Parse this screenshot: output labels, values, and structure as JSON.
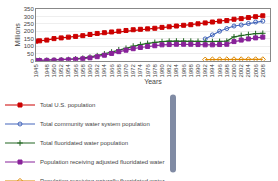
{
  "chart_data": {
    "type": "line",
    "xlabel": "Years",
    "ylabel": "Millions",
    "x": [
      1945,
      1946,
      1948,
      1950,
      1952,
      1954,
      1956,
      1958,
      1960,
      1962,
      1964,
      1966,
      1968,
      1970,
      1972,
      1974,
      1976,
      1978,
      1980,
      1982,
      1984,
      1986,
      1988,
      1990,
      1992,
      1994,
      1996,
      1998,
      2000,
      2002,
      2004,
      2006,
      2008
    ],
    "series": [
      {
        "name": "Total U.S. population",
        "color": "#cc0000",
        "marker": "square",
        "values": [
          133,
          135,
          140,
          150,
          155,
          160,
          165,
          170,
          178,
          185,
          190,
          195,
          200,
          205,
          210,
          213,
          216,
          220,
          226,
          230,
          235,
          240,
          244,
          250,
          256,
          262,
          268,
          272,
          281,
          285,
          292,
          298,
          304
        ]
      },
      {
        "name": "Total community water system population",
        "color": "#4466bb",
        "marker": "circle-open",
        "values": [
          null,
          null,
          null,
          null,
          null,
          null,
          null,
          null,
          null,
          null,
          null,
          null,
          null,
          null,
          null,
          null,
          null,
          null,
          null,
          null,
          null,
          null,
          null,
          null,
          148,
          175,
          200,
          218,
          235,
          242,
          252,
          262,
          268
        ]
      },
      {
        "name": "Total fluoridated water population",
        "color": "#226622",
        "marker": "plus",
        "values": [
          2,
          3,
          4,
          5,
          7,
          9,
          13,
          18,
          25,
          35,
          47,
          60,
          75,
          85,
          100,
          110,
          118,
          125,
          130,
          133,
          134,
          134,
          133,
          132,
          130,
          130,
          131,
          133,
          162,
          172,
          178,
          184,
          186
        ]
      },
      {
        "name": "Population receiving adjusted fluoridated water",
        "color": "#882299",
        "marker": "square",
        "values": [
          1,
          2,
          3,
          4,
          5,
          7,
          10,
          14,
          20,
          28,
          38,
          50,
          62,
          72,
          82,
          90,
          97,
          102,
          108,
          110,
          112,
          112,
          112,
          110,
          108,
          108,
          110,
          112,
          130,
          140,
          148,
          155,
          160
        ]
      },
      {
        "name": "Population receiving naturally fluoridated water",
        "color": "#dd8800",
        "marker": "diamond-open",
        "values": [
          null,
          null,
          null,
          null,
          null,
          null,
          null,
          null,
          null,
          null,
          null,
          null,
          null,
          null,
          null,
          null,
          null,
          null,
          null,
          null,
          null,
          null,
          null,
          null,
          8,
          9,
          9.5,
          9.5,
          10,
          10,
          10,
          10,
          10
        ]
      }
    ],
    "xlim": [
      1945,
      2010
    ],
    "xticks": [
      1945,
      1948,
      1950,
      1952,
      1954,
      1956,
      1958,
      1960,
      1962,
      1964,
      1966,
      1968,
      1970,
      1972,
      1974,
      1976,
      1978,
      1980,
      1982,
      1984,
      1986,
      1988,
      1990,
      1992,
      1994,
      1996,
      1998,
      2000,
      2002,
      2004,
      2006,
      2008
    ],
    "ylim": [
      0,
      350
    ],
    "yticks": [
      0,
      50,
      100,
      150,
      200,
      250,
      300,
      350
    ],
    "grid": "y",
    "legend": "bottom"
  }
}
